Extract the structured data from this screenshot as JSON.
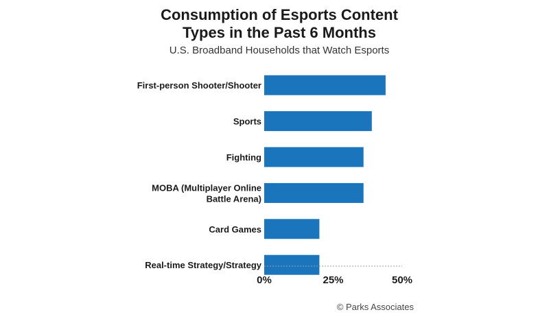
{
  "chart_data": {
    "type": "bar",
    "orientation": "horizontal",
    "title_lines": [
      "Consumption of Esports Content",
      "Types in the Past 6 Months"
    ],
    "subtitle": "U.S. Broadband Households that Watch Esports",
    "categories": [
      [
        "First-person Shooter/Shooter"
      ],
      [
        "Sports"
      ],
      [
        "Fighting"
      ],
      [
        "MOBA (Multiplayer Online",
        "Battle Arena)"
      ],
      [
        "Card Games"
      ],
      [
        "Real-time Strategy/Strategy"
      ]
    ],
    "values": [
      44,
      39,
      36,
      36,
      20,
      20
    ],
    "xlim": [
      0,
      50
    ],
    "xticks": [
      0,
      25,
      50
    ],
    "xtick_labels": [
      "0%",
      "25%",
      "50%"
    ],
    "bar_color": "#1b75bc",
    "grid": false,
    "source": "© Parks Associates"
  }
}
